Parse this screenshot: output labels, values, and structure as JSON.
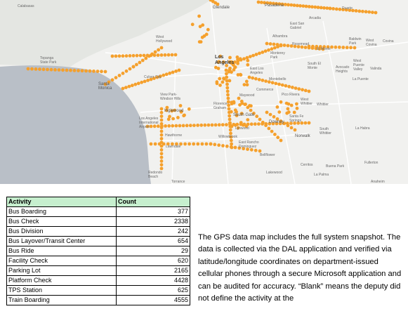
{
  "map": {
    "colors": {
      "land": "#f1f1ef",
      "ocean": "#b9bfc7",
      "mountains": "#e4e6e2",
      "roads": "#ffffff",
      "points": "#f5a02c"
    },
    "places": [
      {
        "key": "calabasas",
        "text": "Calabasas"
      },
      {
        "key": "glendale",
        "text": "Glendale"
      },
      {
        "key": "pasadena",
        "text": "Pasadena"
      },
      {
        "key": "duarte",
        "text": "Duarte"
      },
      {
        "key": "arcadia",
        "text": "Arcadia"
      },
      {
        "key": "east-san-gabriel",
        "text": "East San Gabriel"
      },
      {
        "key": "alhambra",
        "text": "Alhambra"
      },
      {
        "key": "rosemead",
        "text": "Rosemead"
      },
      {
        "key": "el-monte",
        "text": "El Monte"
      },
      {
        "key": "baldwin-park",
        "text": "Baldwin Park"
      },
      {
        "key": "west-covina",
        "text": "West Covina"
      },
      {
        "key": "covina",
        "text": "Covina"
      },
      {
        "key": "topanga",
        "text": "Topanga State Park"
      },
      {
        "key": "west-hollywood",
        "text": "West Hollywood"
      },
      {
        "key": "monterey-park",
        "text": "Monterey Park"
      },
      {
        "key": "south-el-monte",
        "text": "South El Monte"
      },
      {
        "key": "west-puente",
        "text": "West Puente Valley"
      },
      {
        "key": "avocado",
        "text": "Avocado Heights"
      },
      {
        "key": "valinda",
        "text": "Valinda"
      },
      {
        "key": "los-angeles",
        "text": "Los Angeles"
      },
      {
        "key": "east-los-angeles",
        "text": "East Los Angeles"
      },
      {
        "key": "culver-city",
        "text": "Culver City"
      },
      {
        "key": "santa-monica",
        "text": "Santa Monica"
      },
      {
        "key": "montebello",
        "text": "Montebello"
      },
      {
        "key": "la-puente",
        "text": "La Puente"
      },
      {
        "key": "view-park",
        "text": "View Park-Windsor Hills"
      },
      {
        "key": "commerce",
        "text": "Commerce"
      },
      {
        "key": "maywood",
        "text": "Maywood"
      },
      {
        "key": "pico-rivera",
        "text": "Pico Rivera"
      },
      {
        "key": "west-whittier",
        "text": "West Whittier"
      },
      {
        "key": "whittier",
        "text": "Whittier"
      },
      {
        "key": "lax",
        "text": "Los Angeles International Airport"
      },
      {
        "key": "inglewood",
        "text": "Inglewood"
      },
      {
        "key": "florence",
        "text": "Florence-Graham"
      },
      {
        "key": "south-gate",
        "text": "South Gate"
      },
      {
        "key": "downey",
        "text": "Downey"
      },
      {
        "key": "santa-fe-springs",
        "text": "Santa Fe Springs"
      },
      {
        "key": "south-whittier",
        "text": "South Whittier"
      },
      {
        "key": "la-habra",
        "text": "La Habra"
      },
      {
        "key": "hawthorne",
        "text": "Hawthorne"
      },
      {
        "key": "lawndale",
        "text": "Lawndale"
      },
      {
        "key": "lynwood",
        "text": "Lynwood"
      },
      {
        "key": "willowbrook",
        "text": "Willowbrook"
      },
      {
        "key": "norwalk",
        "text": "Norwalk"
      },
      {
        "key": "rancho",
        "text": "East Rancho Dominguez"
      },
      {
        "key": "bellflower",
        "text": "Bellflower"
      },
      {
        "key": "cerritos",
        "text": "Cerritos"
      },
      {
        "key": "buena-park",
        "text": "Buena Park"
      },
      {
        "key": "fullerton",
        "text": "Fullerton"
      },
      {
        "key": "redondo",
        "text": "Redondo Beach"
      },
      {
        "key": "torrance",
        "text": "Torrance"
      },
      {
        "key": "lakewood",
        "text": "Lakewood"
      },
      {
        "key": "la-palma",
        "text": "La Palma"
      },
      {
        "key": "anaheim",
        "text": "Anaheim"
      }
    ]
  },
  "table": {
    "headers": {
      "activity": "Activity",
      "count": "Count"
    },
    "rows": [
      {
        "activity": "Bus Boarding",
        "count": "377"
      },
      {
        "activity": "Bus Check",
        "count": "2338"
      },
      {
        "activity": "Bus Division",
        "count": "242"
      },
      {
        "activity": "Bus Layover/Transit Center",
        "count": "654"
      },
      {
        "activity": "Bus Ride",
        "count": "29"
      },
      {
        "activity": "Facility Check",
        "count": "620"
      },
      {
        "activity": "Parking Lot",
        "count": "2165"
      },
      {
        "activity": "Platform Check",
        "count": "4428"
      },
      {
        "activity": "TPS Station",
        "count": "625"
      },
      {
        "activity": "Train Boarding",
        "count": "4555"
      }
    ]
  },
  "description": "The GPS data map includes the full system snapshot. The data is collected via the DAL application and verified via latitude/longitude coordinates on department-issued cellular phones through a secure Microsoft application and can be audited for accuracy. “Blank” means the deputy did not define the activity at the"
}
